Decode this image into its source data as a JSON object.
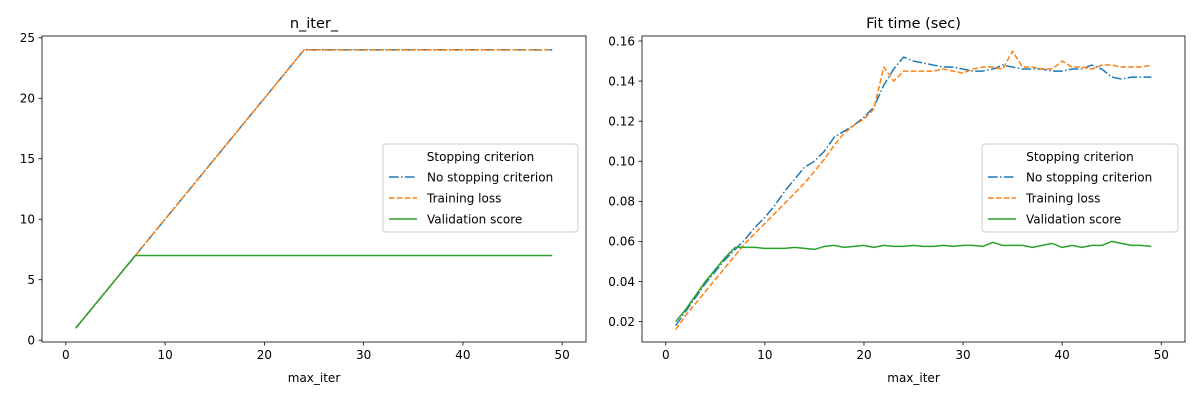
{
  "chart_data": [
    {
      "type": "line",
      "title": "n_iter_",
      "xlabel": "max_iter",
      "ylabel": "",
      "xlim": [
        -2.4,
        52.4
      ],
      "ylim": [
        -0.15,
        25.15
      ],
      "xticks": [
        0,
        10,
        20,
        30,
        40,
        50
      ],
      "xtick_labels": [
        "0",
        "10",
        "20",
        "30",
        "40",
        "50"
      ],
      "yticks": [
        0,
        5,
        10,
        15,
        20,
        25
      ],
      "ytick_labels": [
        "0",
        "5",
        "10",
        "15",
        "20",
        "25"
      ],
      "grid": false,
      "legend": {
        "title": "Stopping criterion",
        "placement": "center-right"
      },
      "x": [
        1,
        2,
        3,
        4,
        5,
        6,
        7,
        8,
        9,
        10,
        11,
        12,
        13,
        14,
        15,
        16,
        17,
        18,
        19,
        20,
        21,
        22,
        23,
        24,
        25,
        26,
        27,
        28,
        29,
        30,
        31,
        32,
        33,
        34,
        35,
        36,
        37,
        38,
        39,
        40,
        41,
        42,
        43,
        44,
        45,
        46,
        47,
        48,
        49
      ],
      "series": [
        {
          "name": "No stopping criterion",
          "color": "#1f77b4",
          "linestyle": "dashdot",
          "values": [
            1,
            2,
            3,
            4,
            5,
            6,
            7,
            8,
            9,
            10,
            11,
            12,
            13,
            14,
            15,
            16,
            17,
            18,
            19,
            20,
            21,
            22,
            23,
            24,
            24,
            24,
            24,
            24,
            24,
            24,
            24,
            24,
            24,
            24,
            24,
            24,
            24,
            24,
            24,
            24,
            24,
            24,
            24,
            24,
            24,
            24,
            24,
            24,
            24
          ]
        },
        {
          "name": "Training loss",
          "color": "#ff7f0e",
          "linestyle": "dashed",
          "values": [
            1,
            2,
            3,
            4,
            5,
            6,
            7,
            8,
            9,
            10,
            11,
            12,
            13,
            14,
            15,
            16,
            17,
            18,
            19,
            20,
            21,
            22,
            23,
            24,
            24,
            24,
            24,
            24,
            24,
            24,
            24,
            24,
            24,
            24,
            24,
            24,
            24,
            24,
            24,
            24,
            24,
            24,
            24,
            24,
            24,
            24,
            24,
            24,
            24
          ]
        },
        {
          "name": "Validation score",
          "color": "#2ca02c",
          "linestyle": "solid",
          "values": [
            1,
            2,
            3,
            4,
            5,
            6,
            7,
            7,
            7,
            7,
            7,
            7,
            7,
            7,
            7,
            7,
            7,
            7,
            7,
            7,
            7,
            7,
            7,
            7,
            7,
            7,
            7,
            7,
            7,
            7,
            7,
            7,
            7,
            7,
            7,
            7,
            7,
            7,
            7,
            7,
            7,
            7,
            7,
            7,
            7,
            7,
            7,
            7,
            7
          ]
        }
      ]
    },
    {
      "type": "line",
      "title": "Fit time (sec)",
      "xlabel": "max_iter",
      "ylabel": "",
      "xlim": [
        -2.4,
        52.4
      ],
      "ylim": [
        0.0098,
        0.1625
      ],
      "xticks": [
        0,
        10,
        20,
        30,
        40,
        50
      ],
      "xtick_labels": [
        "0",
        "10",
        "20",
        "30",
        "40",
        "50"
      ],
      "yticks": [
        0.02,
        0.04,
        0.06,
        0.08,
        0.1,
        0.12,
        0.14,
        0.16
      ],
      "ytick_labels": [
        "0.02",
        "0.04",
        "0.06",
        "0.08",
        "0.10",
        "0.12",
        "0.14",
        "0.16"
      ],
      "grid": false,
      "legend": {
        "title": "Stopping criterion",
        "placement": "center-right"
      },
      "x": [
        1,
        2,
        3,
        4,
        5,
        6,
        7,
        8,
        9,
        10,
        11,
        12,
        13,
        14,
        15,
        16,
        17,
        18,
        19,
        20,
        21,
        22,
        23,
        24,
        25,
        26,
        27,
        28,
        29,
        30,
        31,
        32,
        33,
        34,
        35,
        36,
        37,
        38,
        39,
        40,
        41,
        42,
        43,
        44,
        45,
        46,
        47,
        48,
        49
      ],
      "series": [
        {
          "name": "No stopping criterion",
          "color": "#1f77b4",
          "linestyle": "dashdot",
          "values": [
            0.018,
            0.025,
            0.032,
            0.039,
            0.045,
            0.051,
            0.056,
            0.061,
            0.067,
            0.072,
            0.078,
            0.085,
            0.091,
            0.097,
            0.1,
            0.105,
            0.112,
            0.115,
            0.118,
            0.122,
            0.127,
            0.138,
            0.146,
            0.152,
            0.15,
            0.149,
            0.148,
            0.147,
            0.147,
            0.146,
            0.145,
            0.145,
            0.146,
            0.148,
            0.147,
            0.146,
            0.146,
            0.146,
            0.145,
            0.145,
            0.146,
            0.146,
            0.148,
            0.146,
            0.142,
            0.141,
            0.142,
            0.142,
            0.142
          ]
        },
        {
          "name": "Training loss",
          "color": "#ff7f0e",
          "linestyle": "dashed",
          "values": [
            0.016,
            0.023,
            0.029,
            0.035,
            0.041,
            0.047,
            0.053,
            0.059,
            0.064,
            0.069,
            0.074,
            0.079,
            0.084,
            0.089,
            0.095,
            0.101,
            0.108,
            0.114,
            0.118,
            0.121,
            0.126,
            0.147,
            0.14,
            0.145,
            0.145,
            0.145,
            0.145,
            0.146,
            0.145,
            0.144,
            0.146,
            0.147,
            0.147,
            0.146,
            0.155,
            0.147,
            0.147,
            0.146,
            0.146,
            0.15,
            0.147,
            0.147,
            0.146,
            0.148,
            0.148,
            0.147,
            0.147,
            0.147,
            0.148
          ]
        },
        {
          "name": "Validation score",
          "color": "#2ca02c",
          "linestyle": "solid",
          "values": [
            0.02,
            0.026,
            0.033,
            0.04,
            0.046,
            0.052,
            0.057,
            0.057,
            0.057,
            0.0565,
            0.0565,
            0.0565,
            0.057,
            0.0565,
            0.056,
            0.0575,
            0.058,
            0.057,
            0.0575,
            0.058,
            0.057,
            0.058,
            0.0575,
            0.0575,
            0.058,
            0.0575,
            0.0575,
            0.058,
            0.0575,
            0.058,
            0.058,
            0.0575,
            0.0595,
            0.058,
            0.058,
            0.058,
            0.057,
            0.058,
            0.059,
            0.057,
            0.058,
            0.057,
            0.058,
            0.058,
            0.06,
            0.059,
            0.058,
            0.058,
            0.0575
          ]
        }
      ]
    }
  ]
}
